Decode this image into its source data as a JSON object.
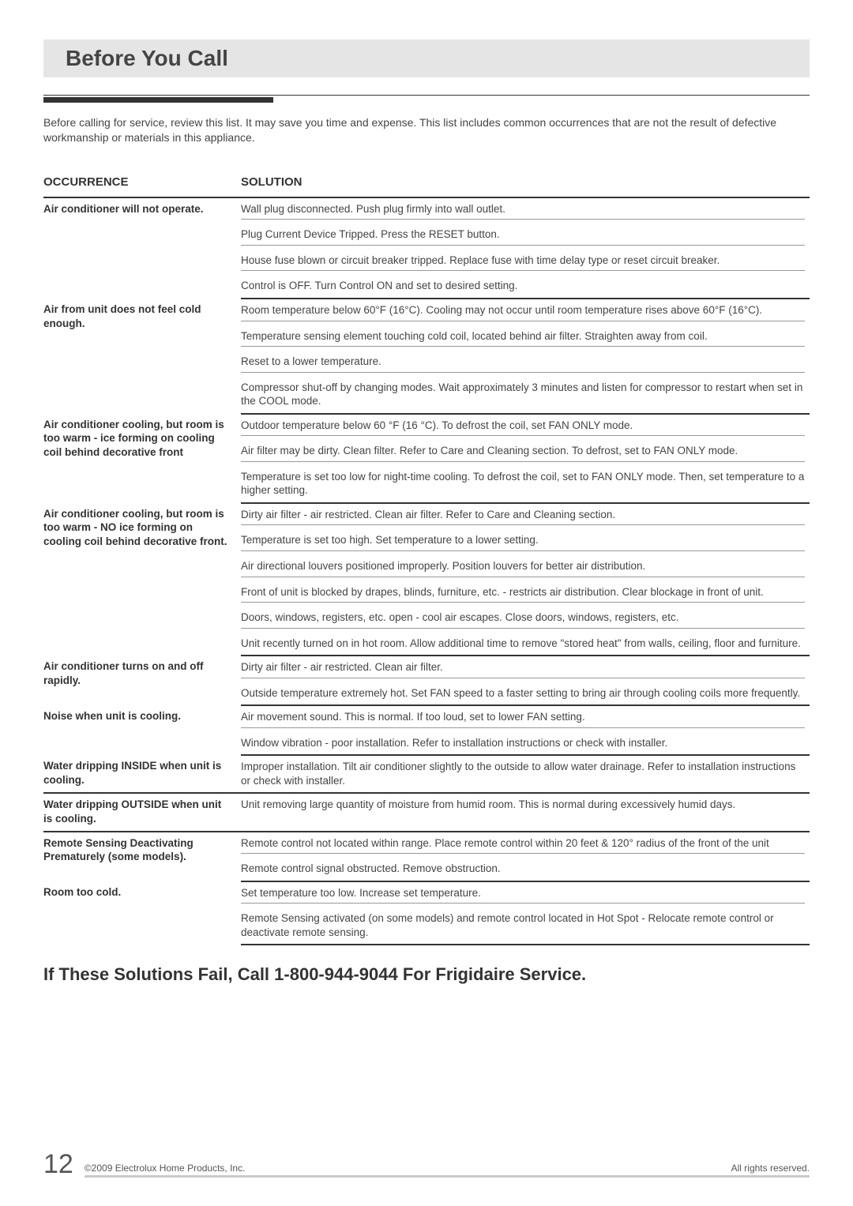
{
  "header": {
    "title": "Before You Call"
  },
  "intro": "Before calling for service, review this list. It may save you time and expense. This list includes common occurrences that are not the result of defective workmanship or materials in this appliance.",
  "columns": {
    "occurrence": "OCCURRENCE",
    "solution": "SOLUTION"
  },
  "troubleshoot": [
    {
      "occurrence": "Air conditioner will not operate.",
      "solutions": [
        "Wall plug disconnected. Push plug firmly into wall outlet.",
        "Plug Current Device Tripped. Press the RESET button.",
        "House fuse blown or circuit breaker tripped. Replace fuse with time delay type or reset circuit breaker.",
        "Control is OFF. Turn Control ON and set to desired setting."
      ]
    },
    {
      "occurrence": "Air from unit does not feel cold enough.",
      "solutions": [
        "Room temperature below 60°F (16°C). Cooling may not occur until room temperature rises above 60°F (16°C).",
        "Temperature sensing element touching cold coil, located behind air filter. Straighten away from coil.",
        "Reset to a lower temperature.",
        "Compressor shut-off by changing modes. Wait approximately 3 minutes and listen for compressor to restart when set in the COOL mode."
      ]
    },
    {
      "occurrence": "Air conditioner cooling, but room is too warm - ice forming on cooling coil behind decorative front",
      "solutions": [
        "Outdoor temperature below 60 °F (16 °C). To defrost the coil, set FAN ONLY mode.",
        "Air filter may be dirty. Clean filter. Refer to Care and Cleaning section. To defrost, set to FAN ONLY mode.",
        "Temperature is set too low for night-time cooling. To defrost the coil, set to FAN  ONLY mode. Then, set temperature to a higher setting."
      ]
    },
    {
      "occurrence": "Air conditioner cooling, but room is too warm - NO ice forming on cooling coil behind decorative front.",
      "solutions": [
        "Dirty air filter - air restricted. Clean air filter. Refer to Care and Cleaning section.",
        "Temperature is set too high. Set temperature to a lower setting.",
        "Air directional louvers positioned improperly. Position louvers for better air distribution.",
        "Front of unit is blocked by drapes, blinds, furniture, etc. - restricts air distribution. Clear blockage in front of unit.",
        "Doors, windows, registers, etc. open - cool air escapes. Close doors, windows, registers, etc.",
        "Unit recently turned on in hot room. Allow additional time to remove \"stored heat\" from walls, ceiling, floor and furniture."
      ]
    },
    {
      "occurrence": "Air conditioner turns on and off rapidly.",
      "solutions": [
        "Dirty air filter - air restricted. Clean air filter.",
        "Outside temperature extremely hot. Set FAN speed to a faster setting to bring air through cooling coils more frequently."
      ]
    },
    {
      "occurrence": "Noise when unit is cooling.",
      "solutions": [
        "Air movement sound. This is normal. If too loud, set to lower FAN setting.",
        "Window vibration - poor installation. Refer to installation instructions or check with installer."
      ]
    },
    {
      "occurrence": "Water dripping INSIDE when unit is cooling.",
      "solutions": [
        "Improper installation. Tilt air conditioner slightly to the outside to allow water drainage. Refer to installation instructions or check with installer."
      ]
    },
    {
      "occurrence": "Water dripping OUTSIDE when unit is cooling.",
      "solutions": [
        "Unit removing large quantity of moisture from humid room. This is normal during excessively humid days."
      ]
    },
    {
      "occurrence": "Remote Sensing Deactivating Prematurely (some models).",
      "solutions": [
        "Remote control not located within range. Place remote control within 20 feet  & 120° radius of the front of the unit",
        "Remote control signal obstructed. Remove obstruction."
      ]
    },
    {
      "occurrence": "Room too cold.",
      "solutions": [
        "Set temperature too low. Increase set temperature.",
        "Remote Sensing activated (on some models) and remote control located in Hot Spot - Relocate remote control or deactivate remote sensing."
      ]
    }
  ],
  "call_line": "If These Solutions Fail, Call 1-800-944-9044 For Frigidaire Service.",
  "footer": {
    "page": "12",
    "copyright": "©2009 Electrolux Home Products, Inc.",
    "rights": "All rights reserved."
  },
  "style": {
    "title_bg": "#e5e5e5",
    "text_color": "#333333",
    "rule_color": "#333333",
    "cell_rule": "#999999",
    "footer_rule": "#c9c9c9",
    "title_fontsize": 28,
    "body_fontsize": 13.5,
    "heading_fontsize": 15,
    "call_fontsize": 22,
    "page_fontsize": 34,
    "col_occurrence_width": 250
  }
}
